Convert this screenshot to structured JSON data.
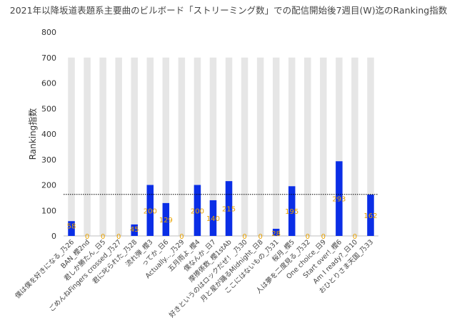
{
  "chart_data": {
    "type": "bar",
    "title": "2021年以降坂道表題系主要曲のビルボード「ストリーミング数」での配信開始後7週目(W)迄のRanking指数",
    "ylabel": "Ranking指数",
    "xlabel": "",
    "ylim": [
      0,
      800
    ],
    "yticks": [
      0,
      100,
      200,
      300,
      400,
      500,
      600,
      700,
      800
    ],
    "max_value": 700,
    "reference_line": 163,
    "colors": {
      "bar": "#0a2ee6",
      "background_bar": "#e6e6e6",
      "label": "#e8a200",
      "reference": "#000000"
    },
    "categories": [
      "僕は僕を好きになる_乃26",
      "BAN_櫻2nd",
      "君しか勝たん_日5",
      "ごめんねFingers crossed_乃27",
      "君に叱られた_乃28",
      "流れ弾_櫻3",
      "ってか_日6",
      "Actually..._乃29",
      "五月雨よ_櫻4",
      "僕なんか_日7",
      "摩擦係数_櫻1stAb",
      "好きというのはロックだぜ！_乃30",
      "月と星が踊るMidnight_日8",
      "ここにはないもの_乃31",
      "桜月_櫻5",
      "人は夢を二度見る_乃32",
      "One choice_日9",
      "Start over!_櫻6",
      "Am I ready?_日10",
      "おひとりさま天国_乃33"
    ],
    "values": [
      58,
      0,
      0,
      0,
      45,
      200,
      129,
      0,
      200,
      140,
      215,
      0,
      0,
      28,
      195,
      0,
      0,
      293,
      0,
      162
    ],
    "labels": [
      "58",
      "0",
      "0",
      "0",
      "45",
      "200",
      "129",
      "0",
      "200",
      "140",
      "215",
      "0",
      "0",
      "28",
      "195",
      "0",
      "0",
      "293",
      "0",
      "162"
    ]
  }
}
